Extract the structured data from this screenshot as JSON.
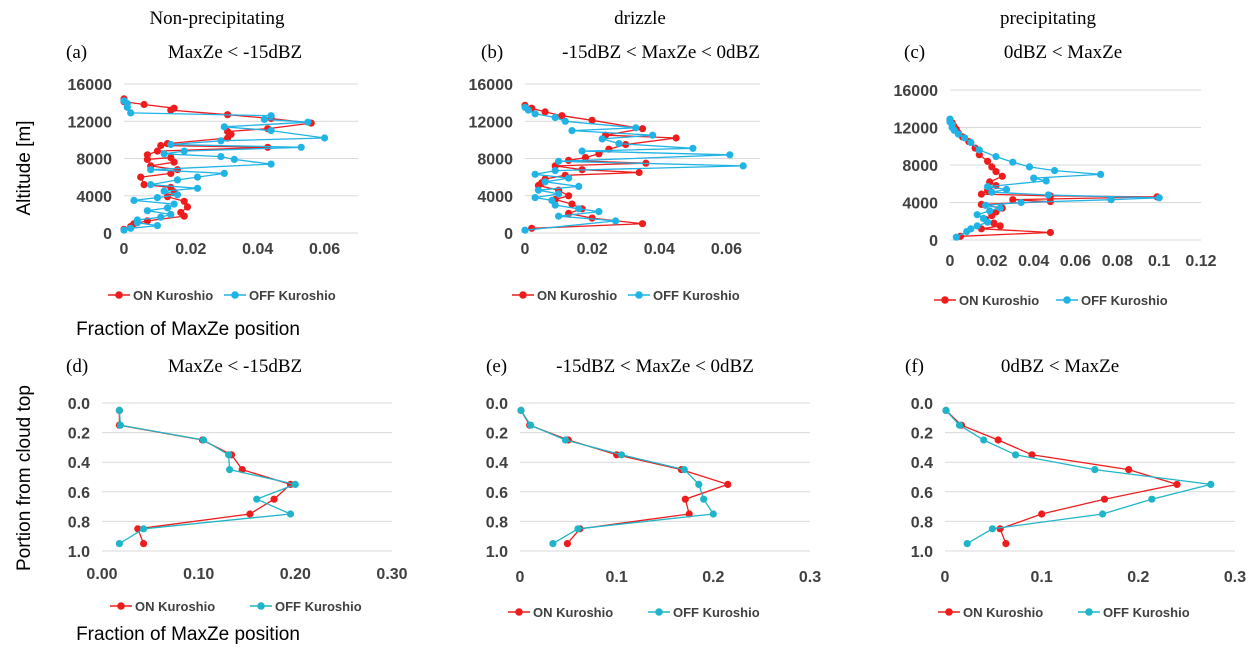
{
  "categories": [
    "Non-precipitating",
    "drizzle",
    "precipitating"
  ],
  "shared_labels": {
    "top_ylabel": "Altitude [m]",
    "top_xlabel": "Fraction of MaxZe position",
    "bottom_ylabel": "Portion from cloud top",
    "bottom_xlabel": "Fraction of MaxZe position"
  },
  "colors": {
    "on": "#ee1c1c",
    "off": "#1fb3e6",
    "off_bottom": "#1fb5c9",
    "grid": "#d9d9d9"
  },
  "chart_data": [
    {
      "type": "line",
      "letter": "(a)",
      "title": "MaxZe < -15dBZ",
      "ylabel": "Altitude [m]",
      "xlabel": "Fraction of MaxZe position",
      "xlim": [
        0,
        0.07
      ],
      "ylim": [
        0,
        16000
      ],
      "xticks": [
        "0",
        "0.02",
        "0.04",
        "0.06"
      ],
      "xtick_values": [
        0,
        0.02,
        0.04,
        0.06
      ],
      "yticks": [
        "0",
        "4000",
        "8000",
        "12000",
        "16000"
      ],
      "ytick_values": [
        0,
        4000,
        8000,
        12000,
        16000
      ],
      "legend": [
        "ON Kuroshio",
        "OFF Kuroshio"
      ],
      "series": [
        {
          "name": "ON Kuroshio",
          "color": "on",
          "x": [
            0,
            0,
            0.006,
            0.015,
            0.014,
            0.031,
            0.044,
            0.056,
            0.043,
            0.031,
            0.032,
            0.031,
            0.013,
            0.011,
            0.043,
            0.01,
            0.007,
            0.007,
            0.014,
            0.015,
            0.008,
            0.016,
            0.014,
            0.005,
            0.006,
            0.014,
            0.015,
            0.013,
            0.018,
            0.019,
            0.017,
            0.018,
            0.007,
            0.003,
            0.002,
            0
          ],
          "y": [
            14400,
            14100,
            13800,
            13400,
            13200,
            12700,
            12300,
            11800,
            11200,
            10900,
            10600,
            10200,
            9600,
            9400,
            9200,
            8800,
            8400,
            7900,
            8100,
            7600,
            7200,
            6800,
            6400,
            6000,
            5200,
            4900,
            4400,
            3900,
            3400,
            2800,
            2200,
            1800,
            1300,
            1000,
            700,
            400
          ]
        },
        {
          "name": "OFF Kuroshio",
          "color": "off",
          "x": [
            0,
            0.001,
            0.001,
            0.002,
            0.044,
            0.042,
            0.055,
            0.03,
            0.044,
            0.06,
            0.029,
            0.014,
            0.053,
            0.018,
            0.012,
            0.029,
            0.033,
            0.044,
            0.008,
            0.03,
            0.022,
            0.016,
            0.008,
            0.022,
            0.012,
            0.016,
            0.01,
            0.003,
            0.015,
            0.013,
            0.007,
            0.014,
            0.011,
            0.004,
            0.004,
            0.01,
            0.002,
            0
          ],
          "y": [
            14200,
            13900,
            13500,
            12900,
            12600,
            12200,
            11900,
            11400,
            11000,
            10200,
            9900,
            9500,
            9200,
            8800,
            8500,
            8200,
            7900,
            7400,
            6800,
            6400,
            6000,
            5700,
            5200,
            4800,
            4500,
            4100,
            3800,
            3500,
            3100,
            2700,
            2400,
            2000,
            1700,
            1400,
            1100,
            800,
            500,
            300
          ]
        }
      ]
    },
    {
      "type": "line",
      "letter": "(b)",
      "title": "-15dBZ < MaxZe < 0dBZ",
      "ylabel": "",
      "xlabel": "",
      "xlim": [
        0,
        0.07
      ],
      "ylim": [
        0,
        16000
      ],
      "xticks": [
        "0",
        "0.02",
        "0.04",
        "0.06"
      ],
      "xtick_values": [
        0,
        0.02,
        0.04,
        0.06
      ],
      "yticks": [
        "0",
        "4000",
        "8000",
        "12000",
        "16000"
      ],
      "ytick_values": [
        0,
        4000,
        8000,
        12000,
        16000
      ],
      "legend": [
        "ON Kuroshio",
        "OFF Kuroshio"
      ],
      "series": [
        {
          "name": "ON Kuroshio",
          "color": "on",
          "x": [
            0,
            0.002,
            0.006,
            0.011,
            0.02,
            0.035,
            0.024,
            0.045,
            0.03,
            0.025,
            0.022,
            0.018,
            0.013,
            0.036,
            0.009,
            0.017,
            0.034,
            0.012,
            0.006,
            0.005,
            0.004,
            0.01,
            0.013,
            0.009,
            0.014,
            0.017,
            0.013,
            0.02,
            0.035,
            0.002
          ],
          "y": [
            13700,
            13400,
            13000,
            12600,
            12100,
            11200,
            10500,
            10200,
            9500,
            9000,
            8500,
            8100,
            7800,
            7500,
            7200,
            6800,
            6500,
            6200,
            5800,
            5400,
            5100,
            4600,
            4000,
            3600,
            3100,
            2600,
            2100,
            1600,
            1000,
            500
          ]
        },
        {
          "name": "OFF Kuroshio",
          "color": "off",
          "x": [
            0,
            0.001,
            0.003,
            0.009,
            0.012,
            0.033,
            0.014,
            0.038,
            0.023,
            0.028,
            0.05,
            0.017,
            0.061,
            0.01,
            0.065,
            0.009,
            0.003,
            0.013,
            0.006,
            0.016,
            0.004,
            0.01,
            0.003,
            0.008,
            0.009,
            0.016,
            0.022,
            0.01,
            0.027,
            0
          ],
          "y": [
            13500,
            13200,
            12800,
            12400,
            12000,
            11300,
            11000,
            10500,
            10100,
            9600,
            9100,
            8800,
            8400,
            7700,
            7200,
            6700,
            6300,
            5900,
            5500,
            5000,
            4600,
            4200,
            3800,
            3500,
            3000,
            2600,
            2300,
            1800,
            1300,
            300
          ]
        }
      ]
    },
    {
      "type": "line",
      "letter": "(c)",
      "title": "0dBZ < MaxZe",
      "ylabel": "",
      "xlabel": "",
      "xlim": [
        0,
        0.12
      ],
      "ylim": [
        0,
        16000
      ],
      "xticks": [
        "0",
        "0.02",
        "0.04",
        "0.06",
        "0.08",
        "0.1",
        "0.12"
      ],
      "xtick_values": [
        0,
        0.02,
        0.04,
        0.06,
        0.08,
        0.1,
        0.12
      ],
      "yticks": [
        "0",
        "4000",
        "8000",
        "12000",
        "16000"
      ],
      "ytick_values": [
        0,
        4000,
        8000,
        12000,
        16000
      ],
      "legend": [
        "ON Kuroshio",
        "OFF Kuroshio"
      ],
      "series": [
        {
          "name": "ON Kuroshio",
          "color": "on",
          "x": [
            0,
            0.001,
            0.002,
            0.003,
            0.004,
            0.006,
            0.009,
            0.012,
            0.014,
            0.018,
            0.02,
            0.022,
            0.025,
            0.019,
            0.022,
            0.018,
            0.015,
            0.048,
            0.099,
            0.03,
            0.048,
            0.015,
            0.025,
            0.022,
            0.02,
            0.017,
            0.021,
            0.024,
            0.015,
            0.048,
            0.005
          ],
          "y": [
            12800,
            12500,
            12100,
            11800,
            11400,
            11000,
            10500,
            9800,
            9100,
            8400,
            7800,
            7300,
            6800,
            6200,
            5800,
            5300,
            4900,
            4700,
            4600,
            4300,
            4100,
            3800,
            3400,
            3000,
            2600,
            2200,
            1800,
            1500,
            1200,
            800,
            400
          ]
        },
        {
          "name": "OFF Kuroshio",
          "color": "off",
          "x": [
            0,
            0,
            0.001,
            0.001,
            0.002,
            0.004,
            0.007,
            0.01,
            0.014,
            0.022,
            0.03,
            0.038,
            0.05,
            0.072,
            0.04,
            0.046,
            0.018,
            0.027,
            0.02,
            0.047,
            0.1,
            0.077,
            0.034,
            0.017,
            0.024,
            0.019,
            0.013,
            0.016,
            0.018,
            0.013,
            0.01,
            0.008,
            0.003
          ],
          "y": [
            12900,
            12600,
            12300,
            12000,
            11700,
            11300,
            10900,
            10400,
            9600,
            8900,
            8300,
            7800,
            7400,
            7000,
            6600,
            6300,
            5700,
            5400,
            5100,
            4800,
            4500,
            4300,
            4000,
            3700,
            3400,
            3100,
            2700,
            2300,
            1900,
            1500,
            1200,
            900,
            300
          ]
        }
      ]
    },
    {
      "type": "line",
      "letter": "(d)",
      "title": "MaxZe < -15dBZ",
      "ylabel": "Portion from cloud top",
      "xlabel": "Fraction of MaxZe position",
      "xlim": [
        0,
        0.3
      ],
      "ylim": [
        0,
        1.0
      ],
      "xticks": [
        "0.00",
        "0.10",
        "0.20",
        "0.30"
      ],
      "xtick_values": [
        0,
        0.1,
        0.2,
        0.3
      ],
      "yticks": [
        "0.0",
        "0.2",
        "0.4",
        "0.6",
        "0.8",
        "1.0"
      ],
      "ytick_values": [
        0,
        0.2,
        0.4,
        0.6,
        0.8,
        1.0
      ],
      "legend": [
        "ON Kuroshio",
        "OFF Kuroshio"
      ],
      "series": [
        {
          "name": "ON Kuroshio",
          "color": "on",
          "x": [
            0.018,
            0.018,
            0.104,
            0.134,
            0.145,
            0.195,
            0.178,
            0.153,
            0.037,
            0.043
          ],
          "y": [
            0.05,
            0.15,
            0.25,
            0.35,
            0.45,
            0.55,
            0.65,
            0.75,
            0.85,
            0.95
          ]
        },
        {
          "name": "OFF Kuroshio",
          "color": "off_bottom",
          "x": [
            0.018,
            0.019,
            0.105,
            0.131,
            0.132,
            0.2,
            0.16,
            0.195,
            0.043,
            0.018
          ],
          "y": [
            0.05,
            0.15,
            0.25,
            0.35,
            0.45,
            0.55,
            0.65,
            0.75,
            0.85,
            0.95
          ]
        }
      ]
    },
    {
      "type": "line",
      "letter": "(e)",
      "title": "-15dBZ < MaxZe < 0dBZ",
      "ylabel": "",
      "xlabel": "",
      "xlim": [
        0,
        0.3
      ],
      "ylim": [
        0,
        1.0
      ],
      "xticks": [
        "0",
        "0.1",
        "0.2",
        "0.3"
      ],
      "xtick_values": [
        0,
        0.1,
        0.2,
        0.3
      ],
      "yticks": [
        "0.0",
        "0.2",
        "0.4",
        "0.6",
        "0.8",
        "1.0"
      ],
      "ytick_values": [
        0,
        0.2,
        0.4,
        0.6,
        0.8,
        1.0
      ],
      "legend": [
        "ON Kuroshio",
        "OFF Kuroshio"
      ],
      "series": [
        {
          "name": "ON Kuroshio",
          "color": "on",
          "x": [
            0.001,
            0.01,
            0.05,
            0.1,
            0.167,
            0.215,
            0.171,
            0.175,
            0.062,
            0.049
          ],
          "y": [
            0.05,
            0.15,
            0.25,
            0.35,
            0.45,
            0.55,
            0.65,
            0.75,
            0.85,
            0.95
          ]
        },
        {
          "name": "OFF Kuroshio",
          "color": "off_bottom",
          "x": [
            0.001,
            0.011,
            0.047,
            0.105,
            0.17,
            0.185,
            0.19,
            0.2,
            0.06,
            0.034
          ],
          "y": [
            0.05,
            0.15,
            0.25,
            0.35,
            0.45,
            0.55,
            0.65,
            0.75,
            0.85,
            0.95
          ]
        }
      ]
    },
    {
      "type": "line",
      "letter": "(f)",
      "title": "0dBZ < MaxZe",
      "ylabel": "",
      "xlabel": "",
      "xlim": [
        0,
        0.3
      ],
      "ylim": [
        0,
        1.0
      ],
      "xticks": [
        "0",
        "0.1",
        "0.2",
        "0.3"
      ],
      "xtick_values": [
        0,
        0.1,
        0.2,
        0.3
      ],
      "yticks": [
        "0.0",
        "0.2",
        "0.4",
        "0.6",
        "0.8",
        "1.0"
      ],
      "ytick_values": [
        0,
        0.2,
        0.4,
        0.6,
        0.8,
        1.0
      ],
      "legend": [
        "ON Kuroshio",
        "OFF Kuroshio"
      ],
      "series": [
        {
          "name": "ON Kuroshio",
          "color": "on",
          "x": [
            0.001,
            0.017,
            0.055,
            0.09,
            0.19,
            0.24,
            0.165,
            0.1,
            0.057,
            0.063
          ],
          "y": [
            0.05,
            0.15,
            0.25,
            0.35,
            0.45,
            0.55,
            0.65,
            0.75,
            0.85,
            0.95
          ]
        },
        {
          "name": "OFF Kuroshio",
          "color": "off_bottom",
          "x": [
            0.001,
            0.015,
            0.04,
            0.073,
            0.155,
            0.275,
            0.214,
            0.163,
            0.049,
            0.023
          ],
          "y": [
            0.05,
            0.15,
            0.25,
            0.35,
            0.45,
            0.55,
            0.65,
            0.75,
            0.85,
            0.95
          ]
        }
      ]
    }
  ]
}
